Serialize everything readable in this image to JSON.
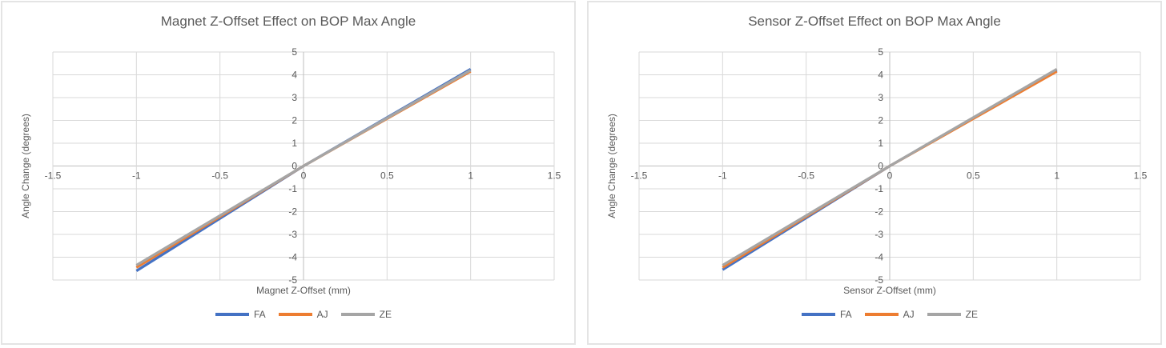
{
  "accent_colors": {
    "series_blue": "#4472C4",
    "series_orange": "#ED7D31",
    "series_gray": "#A5A5A5",
    "text_gray": "#595959",
    "gridline": "#D9D9D9",
    "axis_line": "#BFBFBF",
    "card_border": "#E4E4E4"
  },
  "chart_data": [
    {
      "type": "line",
      "title": "Magnet Z-Offset Effect on BOP Max Angle",
      "xlabel": "Magnet Z-Offset (mm)",
      "ylabel": "Angle Change (degrees)",
      "x": [
        -1,
        0,
        1
      ],
      "series": [
        {
          "name": "FA",
          "color": "#4472C4",
          "values": [
            -4.6,
            0,
            4.25
          ]
        },
        {
          "name": "AJ",
          "color": "#ED7D31",
          "values": [
            -4.45,
            0,
            4.15
          ]
        },
        {
          "name": "ZE",
          "color": "#A5A5A5",
          "values": [
            -4.35,
            0,
            4.2
          ]
        }
      ],
      "xlim": [
        -1.5,
        1.5
      ],
      "ylim": [
        -5,
        5
      ],
      "xticks": [
        -1.5,
        -1,
        -0.5,
        0,
        0.5,
        1,
        1.5
      ],
      "yticks": [
        5,
        4,
        3,
        2,
        1,
        0,
        -1,
        -2,
        -3,
        -4,
        -5
      ],
      "grid": true,
      "legend_position": "bottom",
      "legend": [
        "FA",
        "AJ",
        "ZE"
      ]
    },
    {
      "type": "line",
      "title": "Sensor Z-Offset Effect on BOP Max Angle",
      "xlabel": "Sensor Z-Offset (mm)",
      "ylabel": "Angle Change (degrees)",
      "x": [
        -1,
        0,
        1
      ],
      "series": [
        {
          "name": "FA",
          "color": "#4472C4",
          "values": [
            -4.55,
            0,
            4.2
          ]
        },
        {
          "name": "AJ",
          "color": "#ED7D31",
          "values": [
            -4.45,
            0,
            4.15
          ]
        },
        {
          "name": "ZE",
          "color": "#A5A5A5",
          "values": [
            -4.35,
            0,
            4.25
          ]
        }
      ],
      "xlim": [
        -1.5,
        1.5
      ],
      "ylim": [
        -5,
        5
      ],
      "xticks": [
        -1.5,
        -1,
        -0.5,
        0,
        0.5,
        1,
        1.5
      ],
      "yticks": [
        5,
        4,
        3,
        2,
        1,
        0,
        -1,
        -2,
        -3,
        -4,
        -5
      ],
      "grid": true,
      "legend_position": "bottom",
      "legend": [
        "FA",
        "AJ",
        "ZE"
      ]
    }
  ]
}
